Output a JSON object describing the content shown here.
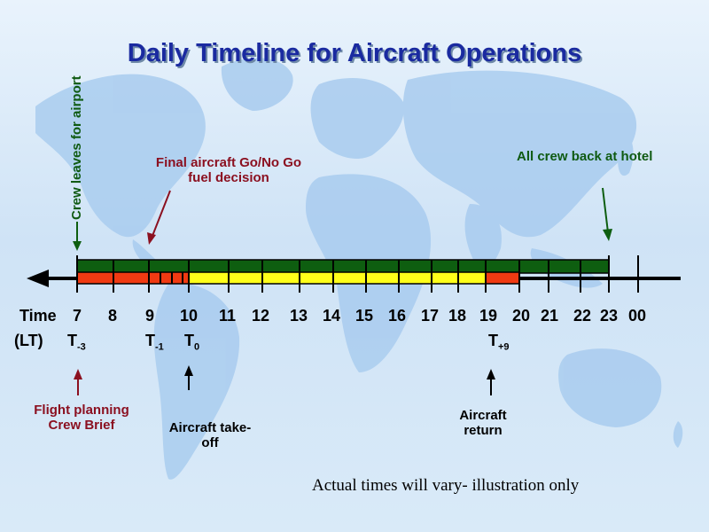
{
  "title": "Daily Timeline for Aircraft Operations",
  "annotations": {
    "crew_leaves": "Crew leaves for airport",
    "go_no_go_line1": "Final aircraft Go/No Go",
    "go_no_go_line2": "fuel  decision",
    "crew_back": "All crew back at hotel",
    "flight_planning_line1": "Flight planning",
    "flight_planning_line2": "Crew Brief",
    "takeoff_line1": "Aircraft take-",
    "takeoff_line2": "off",
    "return_line1": "Aircraft",
    "return_line2": "return"
  },
  "axis": {
    "label_line1": "Time",
    "label_line2": "(LT)",
    "hours": [
      "7",
      "8",
      "9",
      "10",
      "11",
      "12",
      "13",
      "14",
      "15",
      "16",
      "17",
      "18",
      "19",
      "20",
      "21",
      "22",
      "23",
      "00"
    ]
  },
  "t_marks": {
    "t_minus3": {
      "base": "T",
      "sub": "-3"
    },
    "t_minus1": {
      "base": "T",
      "sub": "-1"
    },
    "t_zero": {
      "base": "T",
      "sub": "0"
    },
    "t_plus9": {
      "base": "T",
      "sub": "+9"
    }
  },
  "footnote": "Actual times will vary- illustration only",
  "colors": {
    "crew_bar": "#0e5e10",
    "planning_bar": "#f03a12",
    "flight_bar": "#ffff1a",
    "return_bar": "#f03a12",
    "title": "#1a2aa0",
    "red_text": "#8b1020",
    "green_text": "#0f5a12"
  }
}
